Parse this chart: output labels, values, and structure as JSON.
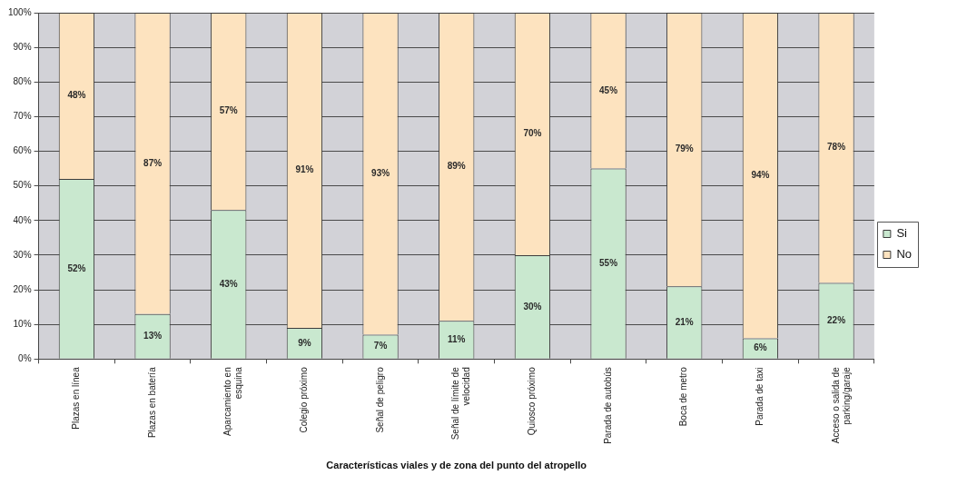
{
  "chart_data": {
    "type": "bar",
    "stacked": true,
    "xlabel": "Características viales y de zona del punto del atropello",
    "categories": [
      "Plazas en línea",
      "Plazas en batería",
      "Aparcamiento en esquina",
      "Colegio próximo",
      "Señal de peligro",
      "Señal de límite de velocidad",
      "Quiosco próximo",
      "Parada de autobús",
      "Boca de metro",
      "Parada de taxi",
      "Acceso o salida de parking/garaje"
    ],
    "series": [
      {
        "name": "Si",
        "color": "#c9e8cf",
        "values": [
          52,
          13,
          43,
          9,
          7,
          11,
          30,
          55,
          21,
          6,
          22
        ],
        "value_labels": [
          "52%",
          "13%",
          "43%",
          "9%",
          "7%",
          "11%",
          "30%",
          "55%",
          "21%",
          "6%",
          "22%"
        ]
      },
      {
        "name": "No",
        "color": "#fde3bf",
        "values": [
          48,
          87,
          57,
          91,
          93,
          89,
          70,
          45,
          79,
          94,
          78
        ],
        "value_labels": [
          "48%",
          "87%",
          "57%",
          "91%",
          "93%",
          "89%",
          "70%",
          "45%",
          "79%",
          "94%",
          "78%"
        ]
      }
    ],
    "ylim": [
      0,
      100
    ],
    "yticks": [
      {
        "value": 0,
        "label": "0%"
      },
      {
        "value": 10,
        "label": "10%"
      },
      {
        "value": 20,
        "label": "20%"
      },
      {
        "value": 30,
        "label": "30%"
      },
      {
        "value": 40,
        "label": "40%"
      },
      {
        "value": 50,
        "label": "50%"
      },
      {
        "value": 60,
        "label": "60%"
      },
      {
        "value": 70,
        "label": "70%"
      },
      {
        "value": 80,
        "label": "80%"
      },
      {
        "value": 90,
        "label": "90%"
      },
      {
        "value": 100,
        "label": "100%"
      }
    ],
    "grid": "y",
    "legend": "right"
  }
}
